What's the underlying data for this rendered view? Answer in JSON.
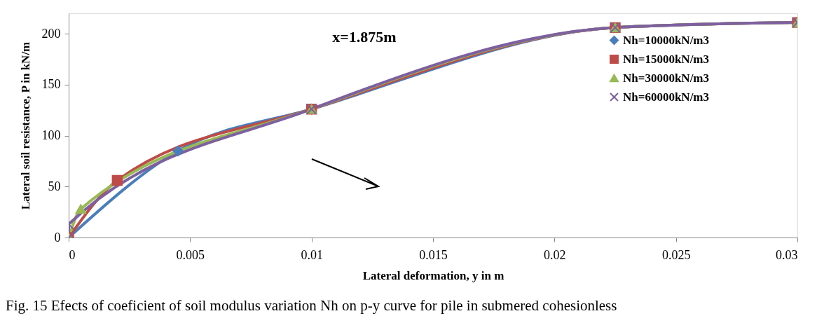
{
  "chart_data": {
    "type": "line",
    "xlabel": "Lateral deformation, y in m",
    "ylabel": "Lateral soil resistance, P in kN/m",
    "xlim": [
      0,
      0.03
    ],
    "xticks": [
      0,
      0.005,
      0.01,
      0.015,
      0.02,
      0.025,
      0.03
    ],
    "ylim": [
      0,
      220
    ],
    "yticks": [
      0,
      50,
      100,
      150,
      200
    ],
    "grid": false,
    "legend": "top right",
    "line_style": "solid",
    "annotations": [
      "x=1.875m",
      "Fig. 15 Efects of coeficient of soil modulus variation Nh on p-y curve for pile in submered cohesionless"
    ],
    "series": [
      {
        "name": "Nh=10000kN/m3",
        "color": "#4a7ebb",
        "marker": "diamond",
        "x": [
          0,
          0.0045,
          0.01,
          0.0225,
          0.03
        ],
        "values": [
          0,
          85,
          126,
          206,
          211
        ]
      },
      {
        "name": "Nh=15000kN/m3",
        "color": "#be4b48",
        "marker": "square",
        "x": [
          0,
          0.002,
          0.01,
          0.0225,
          0.03
        ],
        "values": [
          0,
          56,
          126,
          206,
          211
        ]
      },
      {
        "name": "Nh=30000kN/m3",
        "color": "#98b954",
        "marker": "triangle",
        "x": [
          0,
          0.0005,
          0.01,
          0.0225,
          0.03
        ],
        "values": [
          0,
          28,
          126,
          206,
          211
        ]
      },
      {
        "name": "Nh=60000kN/m3",
        "color": "#7d60a0",
        "marker": "cross",
        "x": [
          0,
          0,
          0.01,
          0.0225,
          0.03
        ],
        "values": [
          0,
          13,
          126,
          206,
          211
        ]
      }
    ]
  }
}
